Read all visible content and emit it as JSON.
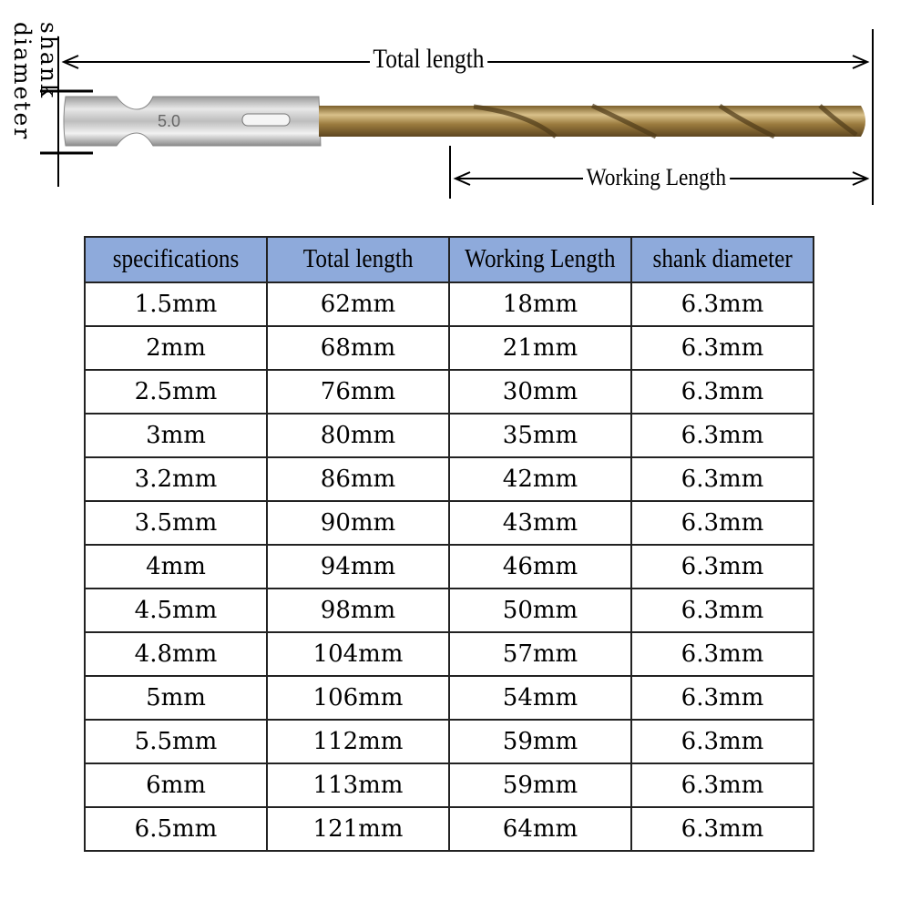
{
  "diagram": {
    "total_length_label": "Total length",
    "working_length_label": "Working Length",
    "shank_diameter_label": "shank diameter",
    "shank_marking": "5.0",
    "colors": {
      "shank": "#c8c8c8",
      "bit": "#a8894a",
      "header": "#8eaadb"
    }
  },
  "table": {
    "headers": [
      "specifications",
      "Total length",
      "Working Length",
      "shank diameter"
    ],
    "rows": [
      [
        "1.5mm",
        "62mm",
        "18mm",
        "6.3mm"
      ],
      [
        "2mm",
        "68mm",
        "21mm",
        "6.3mm"
      ],
      [
        "2.5mm",
        "76mm",
        "30mm",
        "6.3mm"
      ],
      [
        "3mm",
        "80mm",
        "35mm",
        "6.3mm"
      ],
      [
        "3.2mm",
        "86mm",
        "42mm",
        "6.3mm"
      ],
      [
        "3.5mm",
        "90mm",
        "43mm",
        "6.3mm"
      ],
      [
        "4mm",
        "94mm",
        "46mm",
        "6.3mm"
      ],
      [
        "4.5mm",
        "98mm",
        "50mm",
        "6.3mm"
      ],
      [
        "4.8mm",
        "104mm",
        "57mm",
        "6.3mm"
      ],
      [
        "5mm",
        "106mm",
        "54mm",
        "6.3mm"
      ],
      [
        "5.5mm",
        "112mm",
        "59mm",
        "6.3mm"
      ],
      [
        "6mm",
        "113mm",
        "59mm",
        "6.3mm"
      ],
      [
        "6.5mm",
        "121mm",
        "64mm",
        "6.3mm"
      ]
    ]
  }
}
